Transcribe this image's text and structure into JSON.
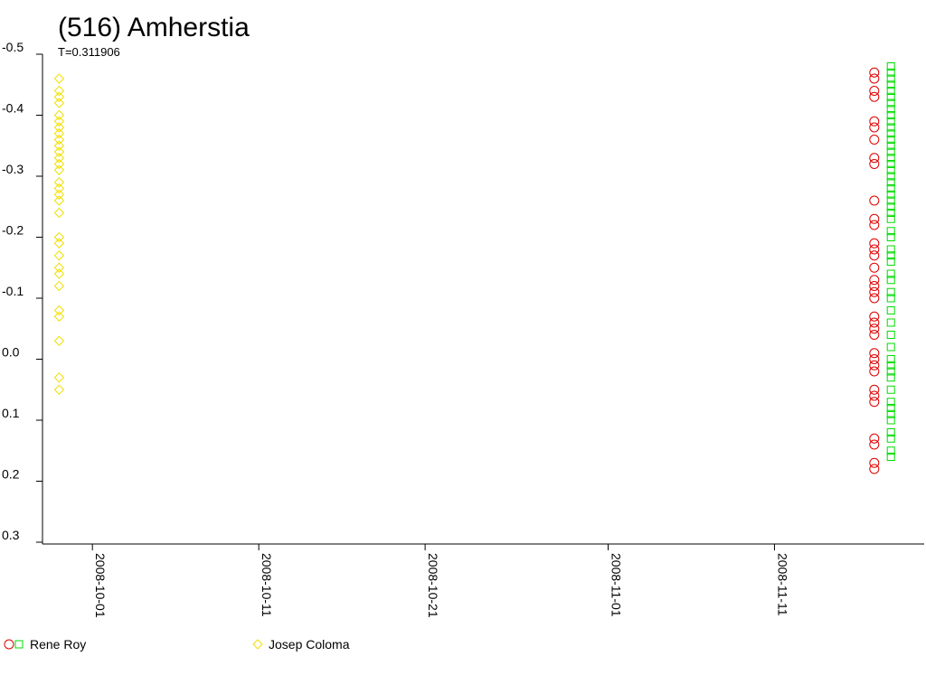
{
  "chart_data": {
    "type": "scatter",
    "title": "(516) Amherstia",
    "subtitle": "T=0.311906",
    "y_inverted": true,
    "ylim": [
      -0.5,
      0.3
    ],
    "yticks": [
      -0.5,
      -0.4,
      -0.3,
      -0.2,
      -0.1,
      {
        "value": 0,
        "label": "0.0"
      },
      0.1,
      0.2,
      0.3
    ],
    "xlim": [
      "2008-09-28",
      "2008-11-20"
    ],
    "xticks": [
      "2008-10-01",
      "2008-10-11",
      "2008-10-21",
      "2008-11-01",
      "2008-11-11"
    ],
    "series": [
      {
        "name": "Rene Roy",
        "color": "#e00000",
        "marker": "circle",
        "x": "2008-11-17",
        "values": [
          -0.47,
          -0.46,
          -0.44,
          -0.43,
          -0.39,
          -0.38,
          -0.36,
          -0.33,
          -0.32,
          -0.26,
          -0.23,
          -0.22,
          -0.19,
          -0.18,
          -0.17,
          -0.15,
          -0.13,
          -0.12,
          -0.11,
          -0.1,
          -0.07,
          -0.06,
          -0.05,
          -0.04,
          -0.01,
          0.0,
          0.01,
          0.02,
          0.05,
          0.06,
          0.07,
          0.13,
          0.14,
          0.17,
          0.18
        ]
      },
      {
        "name": "Rene Roy",
        "color": "#00dd00",
        "marker": "square",
        "x": "2008-11-18",
        "values": [
          -0.48,
          -0.47,
          -0.46,
          -0.45,
          -0.44,
          -0.43,
          -0.42,
          -0.41,
          -0.4,
          -0.39,
          -0.38,
          -0.37,
          -0.36,
          -0.35,
          -0.34,
          -0.33,
          -0.32,
          -0.31,
          -0.3,
          -0.29,
          -0.28,
          -0.27,
          -0.26,
          -0.25,
          -0.24,
          -0.23,
          -0.21,
          -0.2,
          -0.18,
          -0.17,
          -0.16,
          -0.14,
          -0.13,
          -0.11,
          -0.1,
          -0.08,
          -0.06,
          -0.04,
          -0.02,
          0.0,
          0.01,
          0.02,
          0.03,
          0.05,
          0.07,
          0.08,
          0.09,
          0.1,
          0.12,
          0.13,
          0.15,
          0.16
        ]
      },
      {
        "name": "Josep Coloma",
        "color": "#f0e000",
        "marker": "diamond",
        "x": "2008-09-29",
        "values": [
          -0.46,
          -0.44,
          -0.43,
          -0.42,
          -0.4,
          -0.39,
          -0.38,
          -0.37,
          -0.36,
          -0.35,
          -0.34,
          -0.33,
          -0.32,
          -0.31,
          -0.29,
          -0.28,
          -0.27,
          -0.26,
          -0.24,
          -0.2,
          -0.19,
          -0.17,
          -0.15,
          -0.14,
          -0.12,
          -0.08,
          -0.07,
          -0.03,
          0.03,
          0.05
        ]
      }
    ]
  }
}
